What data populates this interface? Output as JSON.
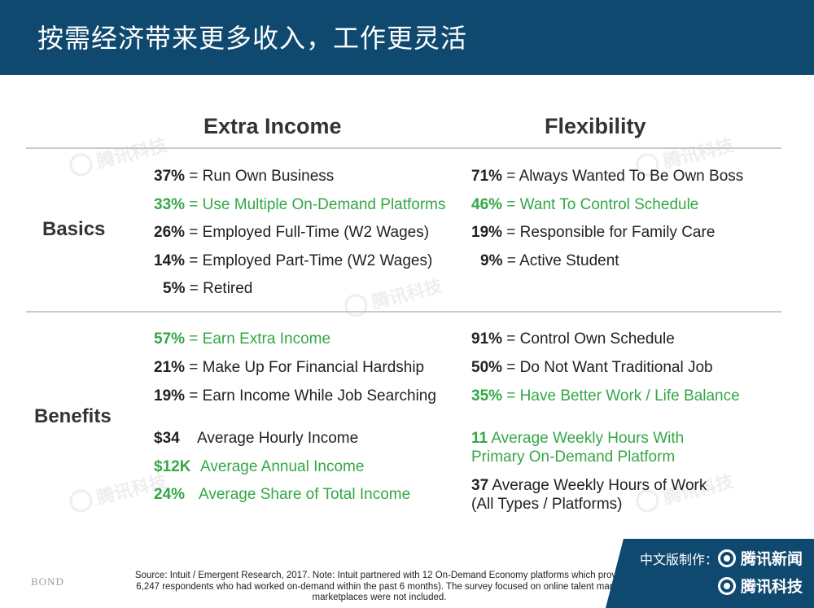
{
  "title": "按需经济带来更多收入，工作更灵活",
  "columns": {
    "extra_income": "Extra Income",
    "flexibility": "Flexibility"
  },
  "rows": {
    "basics": "Basics",
    "benefits": "Benefits"
  },
  "basics": {
    "extra_income": [
      {
        "pct": "37%",
        "text": " = Run Own Business",
        "highlight": false
      },
      {
        "pct": "33%",
        "text": " = Use Multiple On-Demand Platforms",
        "highlight": true
      },
      {
        "pct": "26%",
        "text": " = Employed Full-Time (W2 Wages)",
        "highlight": false
      },
      {
        "pct": "14%",
        "text": " = Employed Part-Time (W2 Wages)",
        "highlight": false
      },
      {
        "pct": "5%",
        "text": " = Retired",
        "highlight": false
      }
    ],
    "flexibility": [
      {
        "pct": "71%",
        "text": " = Always Wanted To Be Own Boss",
        "highlight": false
      },
      {
        "pct": "46%",
        "text": " = Want To Control Schedule",
        "highlight": true
      },
      {
        "pct": "19%",
        "text": " = Responsible for Family Care",
        "highlight": false
      },
      {
        "pct": "9%",
        "text": " = Active Student",
        "highlight": false
      }
    ]
  },
  "benefits": {
    "extra_income": [
      {
        "pct": "57%",
        "text": " = Earn Extra Income",
        "highlight": true
      },
      {
        "pct": "21%",
        "text": " = Make Up For Financial Hardship",
        "highlight": false
      },
      {
        "pct": "19%",
        "text": " = Earn Income While Job Searching",
        "highlight": false
      },
      {
        "pct": "$34",
        "text": "Average Hourly Income",
        "highlight": false
      },
      {
        "pct": "$12K",
        "text": "Average Annual Income",
        "highlight": true
      },
      {
        "pct": "24%",
        "text": "Average Share of Total Income",
        "highlight": true
      }
    ],
    "flexibility": [
      {
        "pct": "91%",
        "text": " = Control Own Schedule",
        "highlight": false
      },
      {
        "pct": "50%",
        "text": " = Do Not Want Traditional Job",
        "highlight": false
      },
      {
        "pct": "35%",
        "text": " = Have Better Work / Life Balance",
        "highlight": true
      },
      {
        "pct": "11",
        "text": " Average Weekly Hours With",
        "text2": "Primary On-Demand Platform",
        "highlight": true
      },
      {
        "pct": "37",
        "text": " Average Weekly Hours of Work",
        "text2": "(All Types / Platforms)",
        "highlight": false
      }
    ]
  },
  "source_lines": [
    "Source: Intuit / Emergent Research, 2017. Note: Intuit partnered with 12 On-Demand Economy platforms which provid",
    "6,247 respondents who had worked on-demand within the past 6 months). The survey focused on online talent marke",
    "marketplaces were not included."
  ],
  "bond_logo": "BOND",
  "badge": {
    "line1": "中文版制作：",
    "brand1": "腾讯新闻",
    "brand2": "腾讯科技"
  },
  "watermark": "腾讯科技",
  "colors": {
    "header": "#10496f",
    "highlight": "#34a744"
  }
}
